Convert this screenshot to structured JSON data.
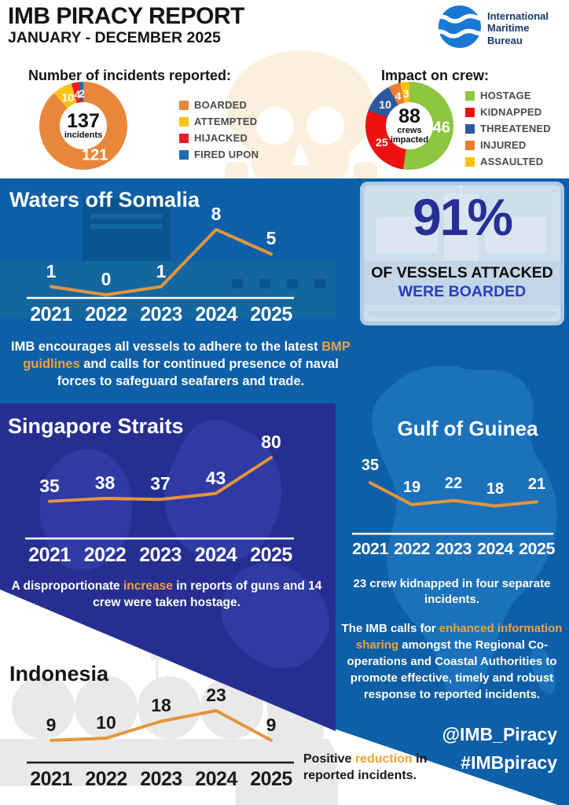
{
  "header": {
    "title": "IMB PIRACY REPORT",
    "subtitle": "JANUARY - DECEMBER 2025",
    "logo": {
      "line1": "International",
      "line2": "Maritime",
      "line3": "Bureau"
    }
  },
  "stat_box": {
    "value": "91%",
    "line1": "OF VESSELS ATTACKED",
    "line2": "WERE BOARDED"
  },
  "sections": {
    "somalia": {
      "title": "Waters off Somalia",
      "note_pre": "IMB encourages all vessels to adhere to the latest ",
      "note_highlight": "BMP guidlines",
      "note_post": " and calls for continued presence of naval forces to safeguard seafarers and trade."
    },
    "singapore": {
      "title": "Singapore Straits",
      "note_pre": "A disproportionate ",
      "note_highlight": "increase",
      "note_post": " in reports of guns and 14 crew were taken hostage."
    },
    "guinea": {
      "title": "Gulf of Guinea",
      "note1": "23 crew kidnapped in four separate incidents.",
      "note2_pre": "The IMB calls for ",
      "note2_highlight": "enhanced information sharing",
      "note2_post": " amongst the Regional Co-operations and Coastal Authorities to promote effective, timely and robust response to reported incidents."
    },
    "indonesia": {
      "title": "Indonesia",
      "note_pre": "Positive ",
      "note_highlight": "reduction",
      "note_post": " in reported incidents."
    }
  },
  "social": {
    "handle": "@IMB_Piracy",
    "hashtag": "#IMBpiracy"
  },
  "colors": {
    "accent_orange": "#F2A23C",
    "band_blue": "#0D5FA8",
    "panel_navy": "#262F91",
    "stat_navy": "#272F96",
    "stat_blue": "#2B3AC4"
  },
  "chart_data": [
    {
      "name": "incidents",
      "type": "donut",
      "title": "Number of incidents reported:",
      "center_value": "137",
      "center_label": "incidents",
      "segments": [
        {
          "label": "BOARDED",
          "value": 121,
          "color": "#E8873B"
        },
        {
          "label": "ATTEMPTED",
          "value": 10,
          "color": "#FDC216"
        },
        {
          "label": "HIJACKED",
          "value": 4,
          "color": "#EC1C24"
        },
        {
          "label": "FIRED UPON",
          "value": 2,
          "color": "#1F6CB4"
        }
      ],
      "legend_position": "right"
    },
    {
      "name": "crew",
      "type": "donut",
      "title": "Impact on crew:",
      "center_value": "88",
      "center_label": "crews impacted",
      "segments": [
        {
          "label": "HOSTAGE",
          "value": 46,
          "color": "#8DC63F"
        },
        {
          "label": "KIDNAPPED",
          "value": 25,
          "color": "#EE1111"
        },
        {
          "label": "THREATENED",
          "value": 10,
          "color": "#2D5A9E"
        },
        {
          "label": "INJURED",
          "value": 4,
          "color": "#ED7D31"
        },
        {
          "label": "ASSAULTED",
          "value": 3,
          "color": "#FFC000"
        }
      ],
      "legend_position": "right"
    },
    {
      "name": "somalia",
      "type": "line",
      "title": "Waters off Somalia",
      "categories": [
        "2021",
        "2022",
        "2023",
        "2024",
        "2025"
      ],
      "values": [
        1,
        0,
        1,
        8,
        5
      ],
      "ylim": [
        0,
        8
      ],
      "grid": false,
      "line_color": "#E5953B",
      "label_color": "#FFFFFF",
      "axis_color": "#FFFFFF"
    },
    {
      "name": "singapore",
      "type": "line",
      "title": "Singapore Straits",
      "categories": [
        "2021",
        "2022",
        "2023",
        "2024",
        "2025"
      ],
      "values": [
        35,
        38,
        37,
        43,
        80
      ],
      "ylim": [
        0,
        80
      ],
      "grid": false,
      "line_color": "#E5953B",
      "label_color": "#FFFFFF",
      "axis_color": "#FFFFFF"
    },
    {
      "name": "guinea",
      "type": "line",
      "title": "Gulf of Guinea",
      "categories": [
        "2021",
        "2022",
        "2023",
        "2024",
        "2025"
      ],
      "values": [
        35,
        19,
        22,
        18,
        21
      ],
      "ylim": [
        0,
        35
      ],
      "grid": false,
      "line_color": "#E5953B",
      "label_color": "#FFFFFF",
      "axis_color": "#FFFFFF"
    },
    {
      "name": "indonesia",
      "type": "line",
      "title": "Indonesia",
      "categories": [
        "2021",
        "2022",
        "2023",
        "2024",
        "2025"
      ],
      "values": [
        9,
        10,
        18,
        23,
        9
      ],
      "ylim": [
        0,
        23
      ],
      "grid": false,
      "line_color": "#E5953B",
      "label_color": "#1A1A1A",
      "axis_color": "#1A1A1A"
    }
  ]
}
